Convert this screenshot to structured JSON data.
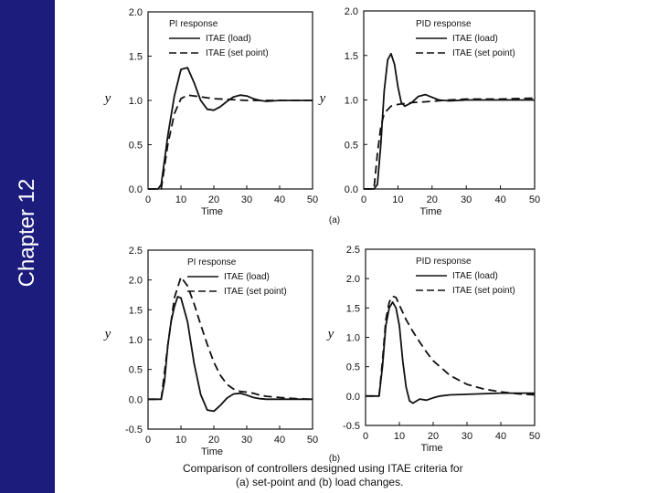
{
  "sidebar": {
    "title": "Chapter 12",
    "color": "#1c1c7c"
  },
  "caption": {
    "line1": "Comparison of controllers designed using ITAE criteria for",
    "line2": "(a) set-point and (b) load changes."
  },
  "chart_data": [
    {
      "type": "line",
      "panel_label": "(a)",
      "title": "PI response",
      "xlabel": "Time",
      "ylabel": "y",
      "xlim": [
        0,
        50
      ],
      "ylim": [
        0,
        2
      ],
      "xticks": [
        0,
        10,
        20,
        30,
        40,
        50
      ],
      "yticks": [
        0,
        0.5,
        1.0,
        1.5,
        2.0
      ],
      "ytick_labels": [
        "0.0",
        "0.5",
        "1.0",
        "1.5",
        "2.0"
      ],
      "legend_position": "top-right",
      "series": [
        {
          "name": "ITAE (load)",
          "style": "solid",
          "x": [
            0,
            3,
            4,
            6,
            8,
            10,
            12,
            14,
            16,
            18,
            20,
            22,
            24,
            26,
            28,
            30,
            32,
            34,
            36,
            40,
            45,
            50
          ],
          "y": [
            0,
            0,
            0.05,
            0.6,
            1.05,
            1.35,
            1.37,
            1.2,
            1.0,
            0.9,
            0.89,
            0.93,
            0.99,
            1.04,
            1.06,
            1.05,
            1.02,
            1.0,
            0.99,
            1.0,
            1.0,
            1.0
          ]
        },
        {
          "name": "ITAE (set point)",
          "style": "dashed",
          "x": [
            0,
            4,
            6,
            8,
            10,
            12,
            14,
            16,
            20,
            25,
            30,
            40,
            50
          ],
          "y": [
            0,
            0,
            0.5,
            0.85,
            1.02,
            1.06,
            1.05,
            1.04,
            1.02,
            1.01,
            1.0,
            1.0,
            1.0
          ]
        }
      ]
    },
    {
      "type": "line",
      "title": "PID response",
      "xlabel": "Time",
      "ylabel": "y",
      "xlim": [
        0,
        50
      ],
      "ylim": [
        0,
        2
      ],
      "xticks": [
        0,
        10,
        20,
        30,
        40,
        50
      ],
      "yticks": [
        0,
        0.5,
        1.0,
        1.5,
        2.0
      ],
      "ytick_labels": [
        "0.0",
        "0.5",
        "1.0",
        "1.5",
        "2.0"
      ],
      "legend_position": "top-right",
      "series": [
        {
          "name": "ITAE (load)",
          "style": "solid",
          "x": [
            0,
            3,
            4,
            5,
            6,
            7,
            8,
            9,
            10,
            11,
            12,
            14,
            16,
            18,
            20,
            22,
            25,
            30,
            40,
            50
          ],
          "y": [
            0,
            0,
            0.05,
            0.5,
            1.1,
            1.45,
            1.52,
            1.4,
            1.15,
            0.97,
            0.93,
            0.97,
            1.04,
            1.06,
            1.03,
            1.0,
            0.99,
            1.0,
            1.0,
            1.0
          ]
        },
        {
          "name": "ITAE (set point)",
          "style": "dashed",
          "x": [
            0,
            3,
            4,
            5,
            6,
            8,
            10,
            12,
            14,
            18,
            25,
            30,
            40,
            50
          ],
          "y": [
            0,
            0,
            0.4,
            0.7,
            0.85,
            0.93,
            0.95,
            0.96,
            0.97,
            0.98,
            1.0,
            1.01,
            1.01,
            1.02
          ]
        }
      ]
    },
    {
      "type": "line",
      "panel_label": "(b)",
      "title": "PI response",
      "xlabel": "Time",
      "ylabel": "y",
      "xlim": [
        0,
        50
      ],
      "ylim": [
        -0.5,
        2.5
      ],
      "xticks": [
        0,
        10,
        20,
        30,
        40,
        50
      ],
      "yticks": [
        -0.5,
        0,
        0.5,
        1.0,
        1.5,
        2.0,
        2.5
      ],
      "ytick_labels": [
        "-0.5",
        "0.0",
        "0.5",
        "1.0",
        "1.5",
        "2.0",
        "2.5"
      ],
      "legend_position": "top-right",
      "series": [
        {
          "name": "ITAE (load)",
          "style": "solid",
          "x": [
            0,
            4,
            5,
            6,
            7,
            8,
            9,
            10,
            12,
            14,
            16,
            18,
            20,
            22,
            24,
            26,
            28,
            30,
            32,
            34,
            36,
            40,
            45,
            50
          ],
          "y": [
            0,
            0,
            0.3,
            0.9,
            1.3,
            1.55,
            1.72,
            1.7,
            1.3,
            0.6,
            0.08,
            -0.18,
            -0.2,
            -0.1,
            0.02,
            0.09,
            0.1,
            0.07,
            0.03,
            0.01,
            0.0,
            0.0,
            0.0,
            0.0
          ]
        },
        {
          "name": "ITAE (set point)",
          "style": "dashed",
          "x": [
            0,
            4,
            6,
            8,
            10,
            12,
            14,
            16,
            18,
            20,
            22,
            24,
            26,
            28,
            30,
            32,
            34,
            36,
            40,
            45,
            50
          ],
          "y": [
            0,
            0,
            0.9,
            1.7,
            2.05,
            1.9,
            1.6,
            1.25,
            0.92,
            0.62,
            0.4,
            0.25,
            0.17,
            0.13,
            0.12,
            0.1,
            0.07,
            0.05,
            0.03,
            0.01,
            0.0
          ]
        }
      ]
    },
    {
      "type": "line",
      "title": "PID response",
      "xlabel": "Time",
      "ylabel": "y",
      "xlim": [
        0,
        50
      ],
      "ylim": [
        -0.5,
        2.5
      ],
      "xticks": [
        0,
        10,
        20,
        30,
        40,
        50
      ],
      "yticks": [
        -0.5,
        0,
        0.5,
        1.0,
        1.5,
        2.0,
        2.5
      ],
      "ytick_labels": [
        "-0.5",
        "0.0",
        "0.5",
        "1.0",
        "1.5",
        "2.0",
        "2.5"
      ],
      "legend_position": "top-right",
      "series": [
        {
          "name": "ITAE (load)",
          "style": "solid",
          "x": [
            0,
            4,
            5,
            6,
            7,
            8,
            9,
            10,
            11,
            12,
            13,
            14,
            16,
            18,
            20,
            22,
            25,
            30,
            40,
            50
          ],
          "y": [
            0,
            0,
            0.5,
            1.2,
            1.5,
            1.6,
            1.5,
            1.2,
            0.6,
            0.15,
            -0.08,
            -0.12,
            -0.05,
            -0.07,
            -0.03,
            0.0,
            0.02,
            0.03,
            0.05,
            0.05
          ]
        },
        {
          "name": "ITAE (set point)",
          "style": "dashed",
          "x": [
            0,
            4,
            5,
            6,
            7,
            8,
            9,
            10,
            12,
            14,
            16,
            18,
            20,
            25,
            30,
            35,
            40,
            45,
            50
          ],
          "y": [
            0,
            0,
            0.6,
            1.3,
            1.6,
            1.7,
            1.68,
            1.55,
            1.3,
            1.1,
            0.92,
            0.75,
            0.6,
            0.35,
            0.2,
            0.12,
            0.07,
            0.04,
            0.02
          ]
        }
      ]
    }
  ]
}
